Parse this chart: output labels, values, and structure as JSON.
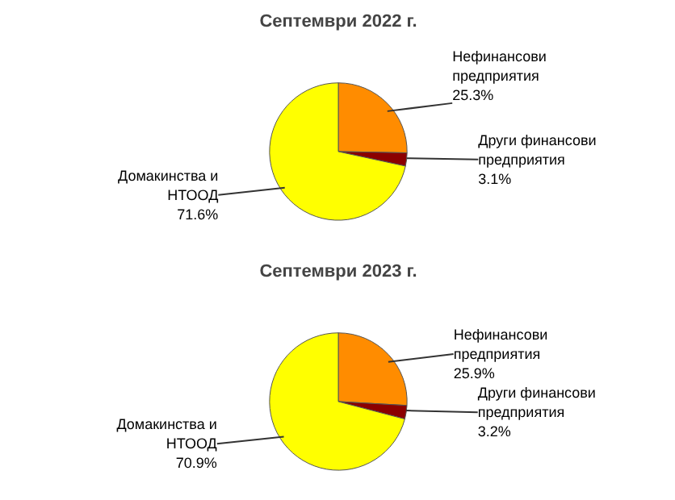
{
  "chart_data": [
    {
      "type": "pie",
      "title": "Септември 2022 г.",
      "categories": [
        "Нефинансови\nпредприятия",
        "Други финансови\nпредприятия",
        "Домакинства и\nНТООД"
      ],
      "values": [
        25.3,
        3.1,
        71.6
      ],
      "colors": [
        "#ff8c00",
        "#8b0000",
        "#ffff00"
      ],
      "value_labels": [
        "25.3%",
        "3.1%",
        "71.6%"
      ]
    },
    {
      "type": "pie",
      "title": "Септември 2023 г.",
      "categories": [
        "Нефинансови\nпредприятия",
        "Други финансови\nпредприятия",
        "Домакинства и\nНТООД"
      ],
      "values": [
        25.9,
        3.2,
        70.9
      ],
      "colors": [
        "#ff8c00",
        "#8b0000",
        "#ffff00"
      ],
      "value_labels": [
        "25.9%",
        "3.2%",
        "70.9%"
      ]
    }
  ]
}
